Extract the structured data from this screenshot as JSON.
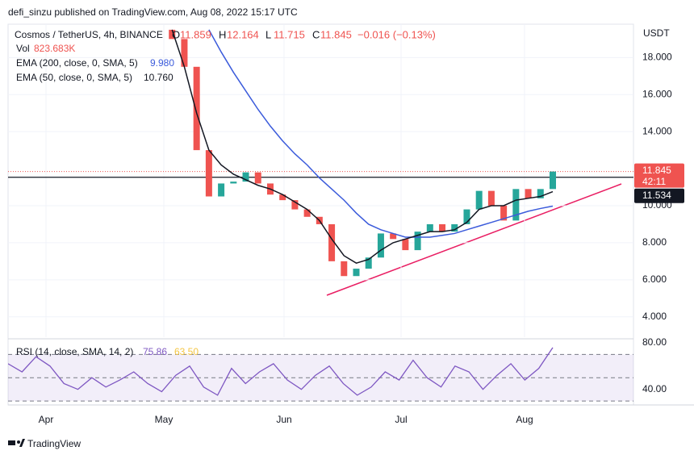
{
  "header": {
    "text": "defi_sinzu published on TradingView.com, Aug 08, 2022 15:17 UTC"
  },
  "legend": {
    "symbol": "Cosmos / TetherUS, 4h, BINANCE",
    "ohlc": [
      {
        "label": "O",
        "value": "11.859"
      },
      {
        "label": "H",
        "value": "12.164"
      },
      {
        "label": "L",
        "value": "11.715"
      },
      {
        "label": "C",
        "value": "11.845"
      }
    ],
    "change": "−0.016 (−0.13%)",
    "vol_label": "Vol",
    "vol_value": "823.683K",
    "ema200_label": "EMA (200, close, 0, SMA, 5)",
    "ema200_value": "9.980",
    "ema50_label": "EMA (50, close, 0, SMA, 5)",
    "ema50_value": "10.760"
  },
  "chart_data": {
    "type": "candlestick",
    "currency": "USDT",
    "ylim": [
      2.9,
      19.8
    ],
    "yticks": [
      {
        "value": 4,
        "label": "4.000"
      },
      {
        "value": 6,
        "label": "6.000"
      },
      {
        "value": 8,
        "label": "8.000"
      },
      {
        "value": 10,
        "label": "10.000"
      },
      {
        "value": 14,
        "label": "14.000"
      },
      {
        "value": 16,
        "label": "16.000"
      },
      {
        "value": 18,
        "label": "18.000"
      }
    ],
    "months": [
      "Apr",
      "May",
      "Jun",
      "Jul",
      "Aug"
    ],
    "close": [
      19.5,
      19.0,
      17.5,
      13.0,
      10.5,
      11.2,
      11.3,
      11.8,
      11.2,
      10.6,
      10.3,
      9.8,
      9.4,
      9.0,
      7.0,
      6.2,
      6.6,
      7.2,
      8.5,
      8.2,
      7.6,
      8.6,
      9.0,
      8.6,
      9.0,
      9.8,
      10.8,
      10.0,
      9.2,
      10.9,
      10.4,
      10.9,
      11.845
    ],
    "up_color": "#26a69a",
    "down_color": "#ef5350",
    "series": [
      {
        "name": "EMA 200",
        "color": "#3b5bdb",
        "values": [
          null,
          null,
          null,
          null,
          19.5,
          18.3,
          17.2,
          16.2,
          15.2,
          14.3,
          13.5,
          12.8,
          12.2,
          11.5,
          10.9,
          10.3,
          9.6,
          9.0,
          8.7,
          8.5,
          8.3,
          8.3,
          8.3,
          8.4,
          8.5,
          8.7,
          8.9,
          9.1,
          9.3,
          9.5,
          9.7,
          9.85,
          9.98
        ]
      },
      {
        "name": "EMA 50",
        "color": "#131722",
        "values": [
          null,
          19.5,
          17.5,
          15.0,
          13.0,
          12.2,
          11.7,
          11.4,
          11.1,
          10.9,
          10.6,
          10.2,
          9.8,
          9.2,
          8.2,
          7.3,
          6.9,
          7.1,
          7.6,
          8.0,
          8.2,
          8.4,
          8.6,
          8.6,
          8.7,
          9.1,
          9.8,
          10.0,
          10.0,
          10.3,
          10.4,
          10.5,
          10.76
        ]
      }
    ],
    "last_price": {
      "value": 11.845,
      "label": "11.845",
      "countdown": "42:11"
    },
    "level": {
      "value": 11.534,
      "label": "11.534"
    },
    "rsi": {
      "label": "RSI (14, close, SMA, 14, 2)",
      "value_label": "75.86",
      "ma_label": "63.50",
      "color": "#7e57c2",
      "ylim": [
        28,
        82
      ],
      "yticks": [
        {
          "value": 80,
          "label": "80.00"
        },
        {
          "value": 40,
          "label": "40.00"
        }
      ],
      "bands": [
        30,
        50,
        70
      ],
      "values": [
        62,
        55,
        68,
        60,
        45,
        40,
        50,
        42,
        48,
        55,
        45,
        38,
        52,
        60,
        42,
        35,
        58,
        45,
        55,
        62,
        48,
        40,
        52,
        60,
        45,
        35,
        42,
        55,
        48,
        65,
        50,
        42,
        60,
        55,
        40,
        52,
        62,
        48,
        58,
        75.86
      ]
    }
  },
  "footer": {
    "brand": "TradingView"
  }
}
